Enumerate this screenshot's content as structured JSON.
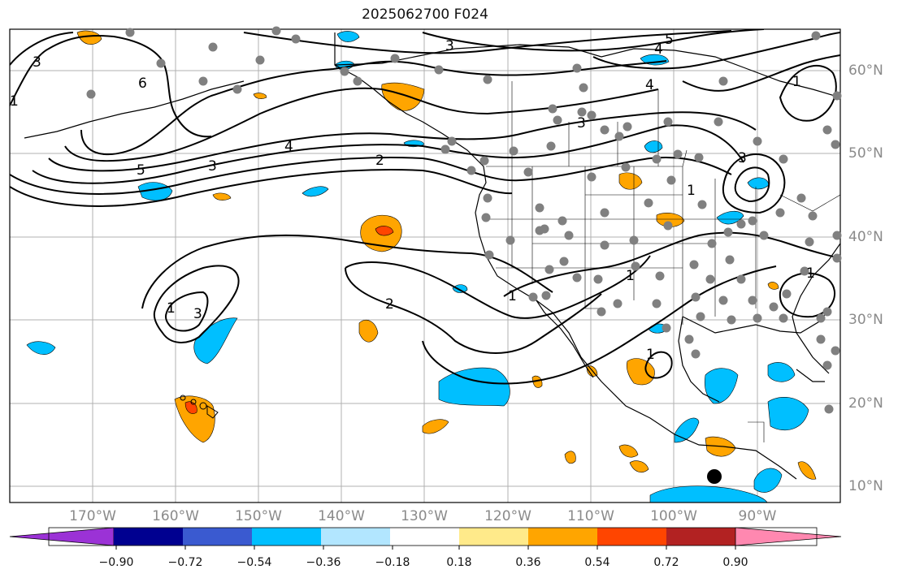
{
  "title": "2025062700 F024",
  "map": {
    "lon_labels": [
      "170°W",
      "160°W",
      "150°W",
      "140°W",
      "130°W",
      "120°W",
      "110°W",
      "100°W",
      "90°W"
    ],
    "lat_labels": [
      "60°N",
      "50°N",
      "40°N",
      "30°N",
      "20°N",
      "10°N"
    ],
    "contour_labels": [
      "1",
      "2",
      "3",
      "4",
      "5",
      "6"
    ]
  },
  "colorbar": {
    "ticks": [
      "−0.90",
      "−0.72",
      "−0.54",
      "−0.36",
      "−0.18",
      "0.18",
      "0.36",
      "0.54",
      "0.72",
      "0.90"
    ],
    "colors": [
      "#9b32d6",
      "#000090",
      "#3a5ad0",
      "#00bfff",
      "#b2e6ff",
      "#ffffff",
      "#ffea8a",
      "#ffa500",
      "#ff4500",
      "#b22222",
      "#ff88b0"
    ]
  },
  "colors": {
    "ocean": "#ffffff",
    "grid": "#b0b0b0",
    "station": "#808080",
    "contour": "#000000"
  }
}
